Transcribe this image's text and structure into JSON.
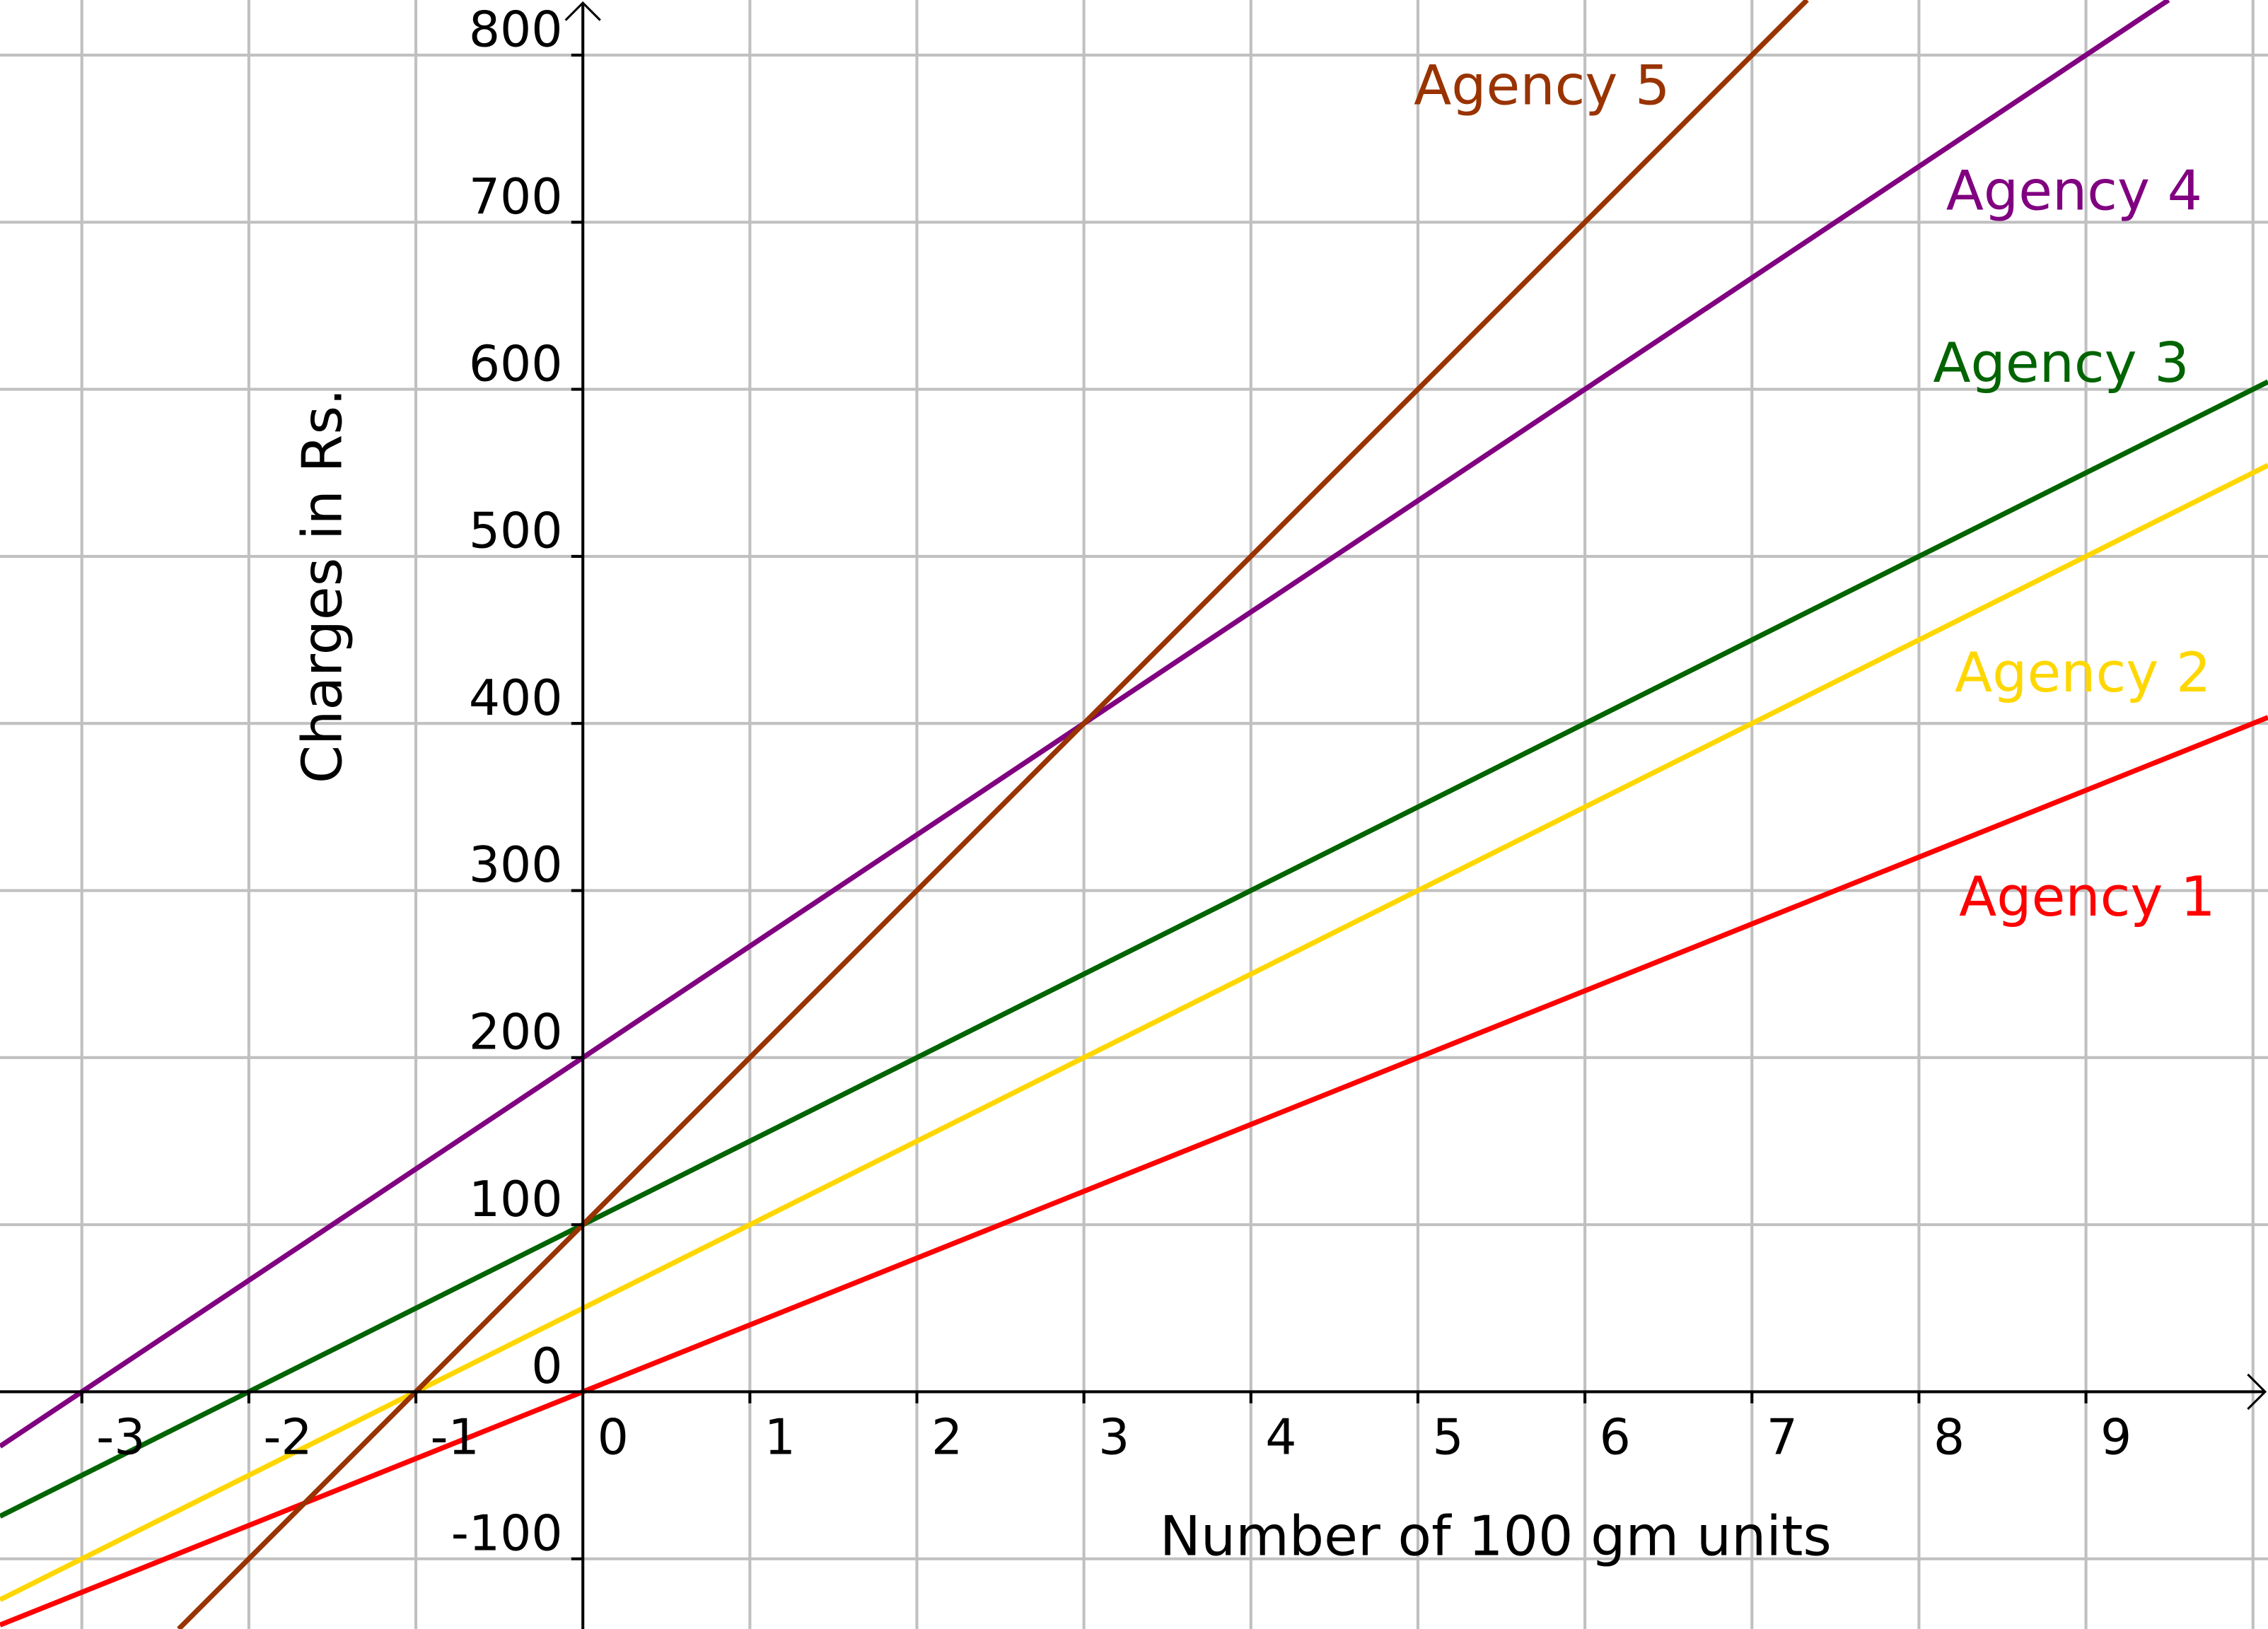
{
  "chart_data": {
    "type": "line",
    "xlabel": "Number of 100 gm units",
    "ylabel": "Charges in Rs.",
    "xlim": [
      -3.49,
      10.09
    ],
    "ylim": [
      -142,
      833
    ],
    "grid": true,
    "x_ticks": [
      "-3",
      "-2",
      "-1",
      "0",
      "1",
      "2",
      "3",
      "4",
      "5",
      "6",
      "7",
      "8",
      "9"
    ],
    "y_ticks": [
      "-100",
      "0",
      "100",
      "200",
      "300",
      "400",
      "500",
      "600",
      "700",
      "800"
    ],
    "series": [
      {
        "name": "Agency 1",
        "color": "#FF0000",
        "slope": 40,
        "intercept": 0
      },
      {
        "name": "Agency 2",
        "color": "#FFD700",
        "slope": 50,
        "intercept": 50
      },
      {
        "name": "Agency 3",
        "color": "#006400",
        "slope": 50,
        "intercept": 100
      },
      {
        "name": "Agency 4",
        "color": "#800080",
        "slope": 66.67,
        "intercept": 200
      },
      {
        "name": "Agency 5",
        "color": "#993300",
        "slope": 100,
        "intercept": 100
      }
    ]
  }
}
